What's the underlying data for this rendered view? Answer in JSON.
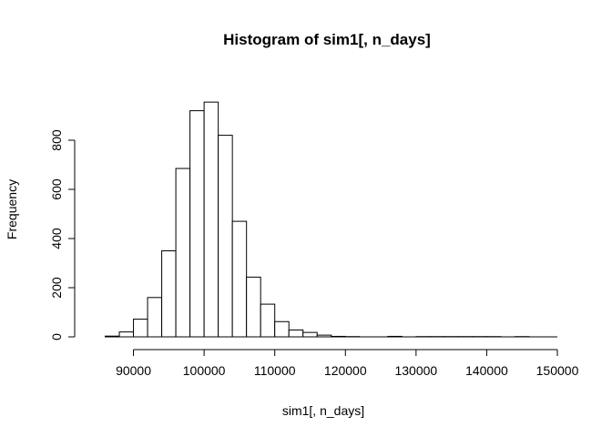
{
  "chart_data": {
    "type": "bar",
    "title": "Histogram of sim1[, n_days]",
    "xlabel": "sim1[, n_days]",
    "ylabel": "Frequency",
    "bin_width": 2000,
    "bins": [
      {
        "start": 86000,
        "end": 88000,
        "count": 3
      },
      {
        "start": 88000,
        "end": 90000,
        "count": 20
      },
      {
        "start": 90000,
        "end": 92000,
        "count": 72
      },
      {
        "start": 92000,
        "end": 94000,
        "count": 160
      },
      {
        "start": 94000,
        "end": 96000,
        "count": 350
      },
      {
        "start": 96000,
        "end": 98000,
        "count": 685
      },
      {
        "start": 98000,
        "end": 100000,
        "count": 920
      },
      {
        "start": 100000,
        "end": 102000,
        "count": 955
      },
      {
        "start": 102000,
        "end": 104000,
        "count": 820
      },
      {
        "start": 104000,
        "end": 106000,
        "count": 470
      },
      {
        "start": 106000,
        "end": 108000,
        "count": 243
      },
      {
        "start": 108000,
        "end": 110000,
        "count": 133
      },
      {
        "start": 110000,
        "end": 112000,
        "count": 62
      },
      {
        "start": 112000,
        "end": 114000,
        "count": 28
      },
      {
        "start": 114000,
        "end": 116000,
        "count": 18
      },
      {
        "start": 116000,
        "end": 118000,
        "count": 7
      },
      {
        "start": 118000,
        "end": 120000,
        "count": 2
      },
      {
        "start": 120000,
        "end": 122000,
        "count": 1
      },
      {
        "start": 126000,
        "end": 128000,
        "count": 2
      },
      {
        "start": 130000,
        "end": 132000,
        "count": 1
      },
      {
        "start": 132000,
        "end": 134000,
        "count": 1
      },
      {
        "start": 134000,
        "end": 136000,
        "count": 1
      },
      {
        "start": 136000,
        "end": 138000,
        "count": 1
      },
      {
        "start": 138000,
        "end": 140000,
        "count": 1
      },
      {
        "start": 140000,
        "end": 142000,
        "count": 1
      },
      {
        "start": 144000,
        "end": 146000,
        "count": 1
      }
    ],
    "x_range": [
      86000,
      150000
    ],
    "xlim": [
      84000,
      150000
    ],
    "ylim": [
      0,
      1000
    ],
    "x_ticks": [
      90000,
      100000,
      110000,
      120000,
      130000,
      140000,
      150000
    ],
    "x_tick_labels": [
      "90000",
      "100000",
      "110000",
      "120000",
      "130000",
      "140000",
      "150000"
    ],
    "y_ticks": [
      0,
      200,
      400,
      600,
      800
    ],
    "y_tick_labels": [
      "0",
      "200",
      "400",
      "600",
      "800"
    ],
    "grid": false,
    "bar_fill": "#ffffff",
    "bar_stroke": "#000000"
  }
}
